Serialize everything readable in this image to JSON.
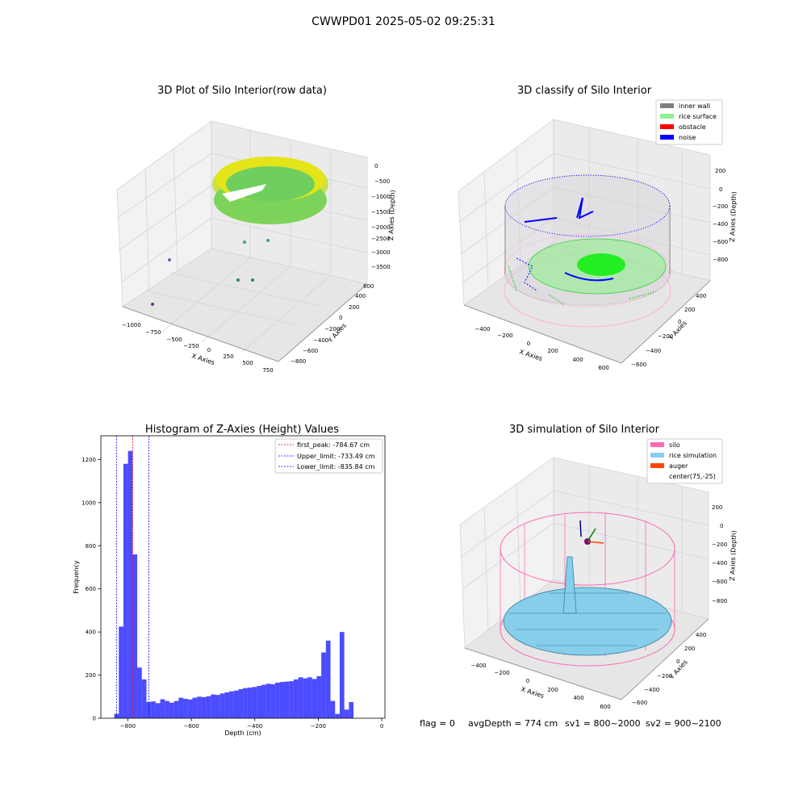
{
  "suptitle": "CWWPD01 2025-05-02 09:25:31",
  "footer": {
    "flag": "flag = 0",
    "avg": "avgDepth = 774 cm",
    "sv1": "sv1 = 800~2000",
    "sv2": "sv2 = 900~2100"
  },
  "plot3d_raw": {
    "title": "3D Plot of Silo Interior(row data)",
    "xlabel": "X Axies",
    "ylabel": "Y Axies",
    "zlabel": "Z Axies (Depth)",
    "xticks": [
      "−1000",
      "−750",
      "−500",
      "−250",
      "0",
      "250",
      "500",
      "750"
    ],
    "yticks": [
      "−800",
      "−600",
      "−400",
      "−200",
      "0",
      "200",
      "400",
      "600"
    ],
    "zticks": [
      "0",
      "−500",
      "−1000",
      "−1500",
      "−2000",
      "−2500",
      "−3000",
      "−3500"
    ]
  },
  "plot3d_class": {
    "title": "3D classify of Silo Interior",
    "xlabel": "X Axies",
    "ylabel": "Y Axies",
    "zlabel": "Z Axies (Depth)",
    "xticks": [
      "−400",
      "−200",
      "0",
      "200",
      "400",
      "600"
    ],
    "yticks": [
      "−600",
      "−400",
      "−200",
      "0",
      "200",
      "400"
    ],
    "zticks": [
      "200",
      "0",
      "−200",
      "−400",
      "−600",
      "−800"
    ],
    "legend": [
      {
        "label": "inner wall",
        "color": "#808080"
      },
      {
        "label": "rice surface",
        "color": "#90ee90"
      },
      {
        "label": "obstacle",
        "color": "#ff0000"
      },
      {
        "label": "noise",
        "color": "#0000ff"
      }
    ]
  },
  "plot3d_sim": {
    "title": "3D simulation of Silo Interior",
    "xlabel": "X Axies",
    "ylabel": "Y Axies",
    "zlabel": "Z Axies (Depth)",
    "xticks": [
      "−400",
      "−200",
      "0",
      "200",
      "400",
      "600"
    ],
    "yticks": [
      "−600",
      "−400",
      "−200",
      "0",
      "200",
      "400"
    ],
    "zticks": [
      "200",
      "0",
      "−200",
      "−400",
      "−600",
      "−800"
    ],
    "legend": [
      {
        "label": "silo",
        "color": "#ff69b4"
      },
      {
        "label": "rice simulation",
        "color": "#87ceeb"
      },
      {
        "label": "auger",
        "color": "#ff4500"
      },
      {
        "label": "center(75,-25)",
        "color": ""
      }
    ]
  },
  "chart_data": {
    "type": "bar",
    "title": "Histogram of Z-Axies (Height) Values",
    "xlabel": "Depth (cm)",
    "ylabel": "Frequency",
    "xlim": [
      -885,
      10
    ],
    "ylim": [
      0,
      1310
    ],
    "bar_color": "#0000ff",
    "bin_width": 14.5,
    "bin_starts": [
      -843,
      -828.5,
      -814,
      -799.5,
      -785,
      -770.5,
      -756,
      -741.5,
      -727,
      -712.5,
      -698,
      -683.5,
      -669,
      -654.5,
      -640,
      -625.5,
      -611,
      -596.5,
      -582,
      -567.5,
      -553,
      -538.5,
      -524,
      -509.5,
      -495,
      -480.5,
      -466,
      -451.5,
      -437,
      -422.5,
      -408,
      -393.5,
      -379,
      -364.5,
      -350,
      -335.5,
      -321,
      -306.5,
      -292,
      -277.5,
      -263,
      -248.5,
      -234,
      -219.5,
      -205,
      -190.5,
      -176,
      -161.5,
      -147,
      -132.5,
      -118,
      -103.5,
      -89,
      -74.5,
      -60,
      -45.5,
      -31,
      -16.5,
      -2
    ],
    "values": [
      20,
      425,
      1180,
      1240,
      760,
      235,
      180,
      75,
      78,
      70,
      88,
      80,
      72,
      80,
      95,
      90,
      87,
      95,
      100,
      98,
      102,
      110,
      108,
      115,
      120,
      125,
      128,
      135,
      140,
      142,
      145,
      150,
      155,
      160,
      158,
      165,
      168,
      170,
      172,
      180,
      190,
      185,
      190,
      182,
      195,
      305,
      360,
      80,
      20,
      400,
      40,
      75,
      0,
      0,
      0,
      0,
      0,
      0,
      0
    ],
    "xticks": [
      -800,
      -600,
      -400,
      -200,
      0
    ],
    "yticks": [
      0,
      200,
      400,
      600,
      800,
      1000,
      1200
    ],
    "vlines": [
      {
        "label": "first_peak: -784.67 cm",
        "x": -784.67,
        "color": "#ff0000"
      },
      {
        "label": "Upper_limit: -733.49 cm",
        "x": -733.49,
        "color": "#0000ff"
      },
      {
        "label": "Lower_limit: -835.84 cm",
        "x": -835.84,
        "color": "#0000ff"
      }
    ]
  }
}
